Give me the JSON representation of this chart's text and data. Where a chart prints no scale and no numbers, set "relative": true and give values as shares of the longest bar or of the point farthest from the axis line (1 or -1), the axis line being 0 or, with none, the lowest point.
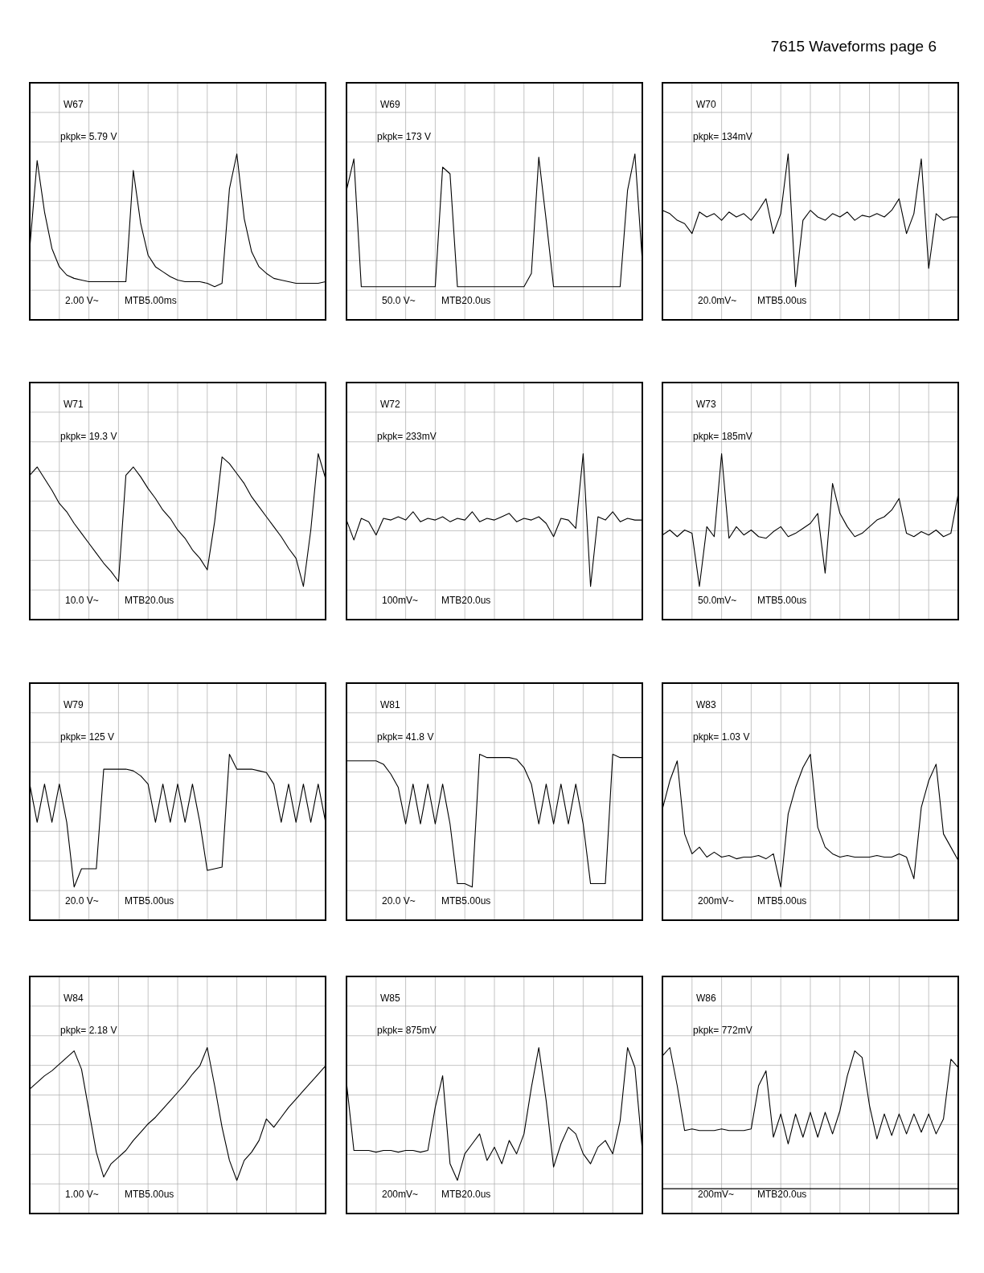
{
  "chart_data": [
    {
      "type": "other",
      "title": "7615 Waveforms page 6"
    },
    {
      "type": "line",
      "title": "W67",
      "annotations": [
        "pkpk= 5.79 V",
        "2.00 V~",
        "MTB5.00ms"
      ],
      "relative": true,
      "grid": true,
      "categories": [
        null,
        null,
        null,
        null,
        null,
        null,
        null,
        null,
        null,
        null,
        null,
        null,
        null,
        null,
        null,
        null,
        null,
        null,
        null,
        null,
        null,
        null,
        null,
        null,
        null,
        null,
        null,
        null,
        null,
        null,
        null,
        null,
        null,
        null,
        null,
        null,
        null,
        null,
        null,
        null,
        null
      ],
      "series": [
        {
          "color": "#000000",
          "values": [
            0.43,
            0.96,
            0.65,
            0.43,
            0.32,
            0.27,
            0.25,
            0.24,
            0.23,
            0.23,
            0.23,
            0.23,
            0.23,
            0.23,
            0.9,
            0.58,
            0.39,
            0.32,
            0.29,
            0.26,
            0.24,
            0.23,
            0.23,
            0.23,
            0.22,
            0.2,
            0.22,
            0.79,
            1,
            0.61,
            0.41,
            0.32,
            0.28,
            0.25,
            0.24,
            0.23,
            0.22,
            0.22,
            0.22,
            0.22,
            0.23
          ]
        }
      ]
    },
    {
      "type": "line",
      "title": "W69",
      "annotations": [
        "pkpk= 173 V",
        "50.0 V~",
        "MTB20.0us"
      ],
      "relative": true,
      "grid": true,
      "categories": [
        null,
        null,
        null,
        null,
        null,
        null,
        null,
        null,
        null,
        null,
        null,
        null,
        null,
        null,
        null,
        null,
        null,
        null,
        null,
        null,
        null,
        null,
        null,
        null,
        null,
        null,
        null,
        null,
        null,
        null,
        null,
        null,
        null,
        null,
        null,
        null,
        null,
        null,
        null,
        null,
        null
      ],
      "series": [
        {
          "color": "#000000",
          "values": [
            0.78,
            0.97,
            0.2,
            0.2,
            0.2,
            0.2,
            0.2,
            0.2,
            0.2,
            0.2,
            0.2,
            0.2,
            0.2,
            0.92,
            0.88,
            0.2,
            0.2,
            0.2,
            0.2,
            0.2,
            0.2,
            0.2,
            0.2,
            0.2,
            0.2,
            0.28,
            0.98,
            0.6,
            0.2,
            0.2,
            0.2,
            0.2,
            0.2,
            0.2,
            0.2,
            0.2,
            0.2,
            0.2,
            0.78,
            1,
            0.35
          ]
        }
      ]
    },
    {
      "type": "line",
      "title": "W70",
      "annotations": [
        "pkpk= 134mV",
        "20.0mV~",
        "MTB5.00us"
      ],
      "relative": true,
      "grid": true,
      "categories": [
        null,
        null,
        null,
        null,
        null,
        null,
        null,
        null,
        null,
        null,
        null,
        null,
        null,
        null,
        null,
        null,
        null,
        null,
        null,
        null,
        null,
        null,
        null,
        null,
        null,
        null,
        null,
        null,
        null,
        null,
        null,
        null,
        null,
        null,
        null,
        null,
        null,
        null,
        null,
        null,
        null
      ],
      "series": [
        {
          "color": "#000000",
          "values": [
            0.66,
            0.64,
            0.6,
            0.58,
            0.52,
            0.65,
            0.62,
            0.64,
            0.6,
            0.65,
            0.62,
            0.64,
            0.6,
            0.66,
            0.73,
            0.52,
            0.64,
            1,
            0.2,
            0.6,
            0.66,
            0.62,
            0.6,
            0.64,
            0.62,
            0.65,
            0.6,
            0.63,
            0.62,
            0.64,
            0.62,
            0.66,
            0.73,
            0.52,
            0.64,
            0.97,
            0.31,
            0.64,
            0.6,
            0.62,
            0.62
          ]
        }
      ]
    },
    {
      "type": "line",
      "title": "W71",
      "annotations": [
        "pkpk= 19.3 V",
        "10.0 V~",
        "MTB20.0us"
      ],
      "relative": true,
      "grid": true,
      "categories": [
        null,
        null,
        null,
        null,
        null,
        null,
        null,
        null,
        null,
        null,
        null,
        null,
        null,
        null,
        null,
        null,
        null,
        null,
        null,
        null,
        null,
        null,
        null,
        null,
        null,
        null,
        null,
        null,
        null,
        null,
        null,
        null,
        null,
        null,
        null,
        null,
        null,
        null,
        null,
        null,
        null
      ],
      "series": [
        {
          "color": "#000000",
          "values": [
            0.87,
            0.92,
            0.85,
            0.78,
            0.7,
            0.65,
            0.58,
            0.52,
            0.46,
            0.4,
            0.34,
            0.29,
            0.23,
            0.87,
            0.92,
            0.86,
            0.79,
            0.73,
            0.66,
            0.61,
            0.54,
            0.49,
            0.42,
            0.37,
            0.3,
            0.59,
            0.98,
            0.94,
            0.88,
            0.82,
            0.74,
            0.68,
            0.62,
            0.56,
            0.5,
            0.43,
            0.37,
            0.2,
            0.54,
            1,
            0.85
          ]
        }
      ]
    },
    {
      "type": "line",
      "title": "W72",
      "annotations": [
        "pkpk= 233mV",
        "100mV~",
        "MTB20.0us"
      ],
      "relative": true,
      "grid": true,
      "categories": [
        null,
        null,
        null,
        null,
        null,
        null,
        null,
        null,
        null,
        null,
        null,
        null,
        null,
        null,
        null,
        null,
        null,
        null,
        null,
        null,
        null,
        null,
        null,
        null,
        null,
        null,
        null,
        null,
        null,
        null,
        null,
        null,
        null,
        null,
        null,
        null,
        null,
        null,
        null,
        null,
        null
      ],
      "series": [
        {
          "color": "#000000",
          "values": [
            0.6,
            0.48,
            0.61,
            0.59,
            0.51,
            0.61,
            0.6,
            0.62,
            0.6,
            0.65,
            0.59,
            0.61,
            0.6,
            0.62,
            0.59,
            0.61,
            0.6,
            0.65,
            0.59,
            0.61,
            0.6,
            0.62,
            0.64,
            0.59,
            0.61,
            0.6,
            0.62,
            0.58,
            0.5,
            0.61,
            0.6,
            0.55,
            1,
            0.2,
            0.62,
            0.6,
            0.65,
            0.59,
            0.61,
            0.6,
            0.6
          ]
        }
      ]
    },
    {
      "type": "line",
      "title": "W73",
      "annotations": [
        "pkpk= 185mV",
        "50.0mV~",
        "MTB5.00us"
      ],
      "relative": true,
      "grid": true,
      "categories": [
        null,
        null,
        null,
        null,
        null,
        null,
        null,
        null,
        null,
        null,
        null,
        null,
        null,
        null,
        null,
        null,
        null,
        null,
        null,
        null,
        null,
        null,
        null,
        null,
        null,
        null,
        null,
        null,
        null,
        null,
        null,
        null,
        null,
        null,
        null,
        null,
        null,
        null,
        null,
        null,
        null
      ],
      "series": [
        {
          "color": "#000000",
          "values": [
            0.51,
            0.54,
            0.5,
            0.54,
            0.52,
            0.2,
            0.56,
            0.5,
            1,
            0.49,
            0.56,
            0.51,
            0.54,
            0.5,
            0.49,
            0.53,
            0.56,
            0.5,
            0.52,
            0.55,
            0.58,
            0.64,
            0.28,
            0.82,
            0.64,
            0.56,
            0.5,
            0.52,
            0.56,
            0.6,
            0.62,
            0.66,
            0.73,
            0.52,
            0.5,
            0.53,
            0.51,
            0.54,
            0.5,
            0.52,
            0.76
          ]
        }
      ]
    },
    {
      "type": "line",
      "title": "W79",
      "annotations": [
        "pkpk=  125 V",
        "20.0 V~",
        "MTB5.00us"
      ],
      "relative": true,
      "grid": true,
      "categories": [
        null,
        null,
        null,
        null,
        null,
        null,
        null,
        null,
        null,
        null,
        null,
        null,
        null,
        null,
        null,
        null,
        null,
        null,
        null,
        null,
        null,
        null,
        null,
        null,
        null,
        null,
        null,
        null,
        null,
        null,
        null,
        null,
        null,
        null,
        null,
        null,
        null,
        null,
        null,
        null,
        null
      ],
      "series": [
        {
          "color": "#000000",
          "values": [
            0.82,
            0.59,
            0.82,
            0.59,
            0.82,
            0.59,
            0.2,
            0.31,
            0.31,
            0.31,
            0.91,
            0.91,
            0.91,
            0.91,
            0.9,
            0.87,
            0.82,
            0.59,
            0.82,
            0.59,
            0.82,
            0.59,
            0.82,
            0.59,
            0.3,
            0.31,
            0.32,
            1,
            0.91,
            0.91,
            0.91,
            0.9,
            0.89,
            0.82,
            0.59,
            0.82,
            0.59,
            0.82,
            0.59,
            0.82,
            0.59
          ]
        }
      ]
    },
    {
      "type": "line",
      "title": "W81",
      "annotations": [
        "pkpk= 41.8 V",
        "20.0 V~",
        "MTB5.00us"
      ],
      "relative": true,
      "grid": true,
      "categories": [
        null,
        null,
        null,
        null,
        null,
        null,
        null,
        null,
        null,
        null,
        null,
        null,
        null,
        null,
        null,
        null,
        null,
        null,
        null,
        null,
        null,
        null,
        null,
        null,
        null,
        null,
        null,
        null,
        null,
        null,
        null,
        null,
        null,
        null,
        null,
        null,
        null,
        null,
        null,
        null,
        null
      ],
      "series": [
        {
          "color": "#000000",
          "values": [
            0.96,
            0.96,
            0.96,
            0.96,
            0.96,
            0.94,
            0.88,
            0.8,
            0.58,
            0.82,
            0.58,
            0.82,
            0.58,
            0.82,
            0.58,
            0.22,
            0.22,
            0.2,
            1,
            0.98,
            0.98,
            0.98,
            0.98,
            0.97,
            0.92,
            0.82,
            0.58,
            0.82,
            0.58,
            0.82,
            0.58,
            0.82,
            0.58,
            0.22,
            0.22,
            0.22,
            1,
            0.98,
            0.98,
            0.98,
            0.98
          ]
        }
      ]
    },
    {
      "type": "line",
      "title": "W83",
      "annotations": [
        "pkpk= 1.03 V",
        "200mV~",
        "MTB5.00us"
      ],
      "relative": true,
      "grid": true,
      "categories": [
        null,
        null,
        null,
        null,
        null,
        null,
        null,
        null,
        null,
        null,
        null,
        null,
        null,
        null,
        null,
        null,
        null,
        null,
        null,
        null,
        null,
        null,
        null,
        null,
        null,
        null,
        null,
        null,
        null,
        null,
        null,
        null,
        null,
        null,
        null,
        null,
        null,
        null,
        null,
        null,
        null
      ],
      "series": [
        {
          "color": "#000000",
          "values": [
            0.67,
            0.84,
            0.96,
            0.52,
            0.4,
            0.44,
            0.38,
            0.41,
            0.38,
            0.39,
            0.37,
            0.38,
            0.38,
            0.39,
            0.37,
            0.4,
            0.2,
            0.64,
            0.8,
            0.92,
            1,
            0.56,
            0.44,
            0.4,
            0.38,
            0.39,
            0.38,
            0.38,
            0.38,
            0.39,
            0.38,
            0.38,
            0.4,
            0.38,
            0.25,
            0.68,
            0.84,
            0.94,
            0.52,
            0.44,
            0.36
          ]
        }
      ]
    },
    {
      "type": "line",
      "title": "W84",
      "annotations": [
        "pkpk= 2.18 V",
        "1.00 V~",
        "MTB5.00us"
      ],
      "relative": true,
      "grid": true,
      "categories": [
        null,
        null,
        null,
        null,
        null,
        null,
        null,
        null,
        null,
        null,
        null,
        null,
        null,
        null,
        null,
        null,
        null,
        null,
        null,
        null,
        null,
        null,
        null,
        null,
        null,
        null,
        null,
        null,
        null,
        null,
        null,
        null,
        null,
        null,
        null,
        null,
        null,
        null,
        null,
        null,
        null
      ],
      "series": [
        {
          "color": "#000000",
          "values": [
            0.75,
            0.79,
            0.83,
            0.86,
            0.9,
            0.94,
            0.98,
            0.87,
            0.62,
            0.37,
            0.22,
            0.3,
            0.34,
            0.38,
            0.44,
            0.49,
            0.54,
            0.58,
            0.63,
            0.68,
            0.73,
            0.78,
            0.84,
            0.89,
            1,
            0.77,
            0.52,
            0.32,
            0.2,
            0.32,
            0.37,
            0.44,
            0.57,
            0.52,
            0.58,
            0.64,
            0.69,
            0.74,
            0.79,
            0.84,
            0.89
          ]
        }
      ]
    },
    {
      "type": "line",
      "title": "W85",
      "annotations": [
        "pkpk=  875mV",
        "200mV~",
        "MTB20.0us"
      ],
      "relative": true,
      "grid": true,
      "categories": [
        null,
        null,
        null,
        null,
        null,
        null,
        null,
        null,
        null,
        null,
        null,
        null,
        null,
        null,
        null,
        null,
        null,
        null,
        null,
        null,
        null,
        null,
        null,
        null,
        null,
        null,
        null,
        null,
        null,
        null,
        null,
        null,
        null,
        null,
        null,
        null,
        null,
        null,
        null,
        null,
        null
      ],
      "series": [
        {
          "color": "#000000",
          "values": [
            0.79,
            0.38,
            0.38,
            0.38,
            0.37,
            0.38,
            0.38,
            0.37,
            0.38,
            0.38,
            0.37,
            0.38,
            0.64,
            0.83,
            0.3,
            0.2,
            0.36,
            0.42,
            0.48,
            0.32,
            0.4,
            0.3,
            0.44,
            0.36,
            0.48,
            0.76,
            1,
            0.68,
            0.28,
            0.42,
            0.52,
            0.48,
            0.36,
            0.3,
            0.4,
            0.44,
            0.36,
            0.56,
            1,
            0.88,
            0.38
          ]
        }
      ]
    },
    {
      "type": "line",
      "title": "W86",
      "annotations": [
        "pkpk=  772mV",
        "200mV~",
        "MTB20.0us"
      ],
      "relative": true,
      "grid": true,
      "ref_lines": [
        {
          "axis": "y",
          "value": 0.15,
          "color": "#000000"
        }
      ],
      "categories": [
        null,
        null,
        null,
        null,
        null,
        null,
        null,
        null,
        null,
        null,
        null,
        null,
        null,
        null,
        null,
        null,
        null,
        null,
        null,
        null,
        null,
        null,
        null,
        null,
        null,
        null,
        null,
        null,
        null,
        null,
        null,
        null,
        null,
        null,
        null,
        null,
        null,
        null,
        null,
        null,
        null
      ],
      "series": [
        {
          "color": "#000000",
          "values": [
            0.95,
            1,
            0.77,
            0.5,
            0.51,
            0.5,
            0.5,
            0.5,
            0.51,
            0.5,
            0.5,
            0.5,
            0.51,
            0.77,
            0.86,
            0.46,
            0.6,
            0.42,
            0.6,
            0.46,
            0.61,
            0.46,
            0.61,
            0.48,
            0.62,
            0.83,
            0.98,
            0.94,
            0.65,
            0.45,
            0.6,
            0.47,
            0.6,
            0.48,
            0.6,
            0.49,
            0.6,
            0.48,
            0.57,
            0.93,
            0.88
          ]
        }
      ]
    }
  ]
}
